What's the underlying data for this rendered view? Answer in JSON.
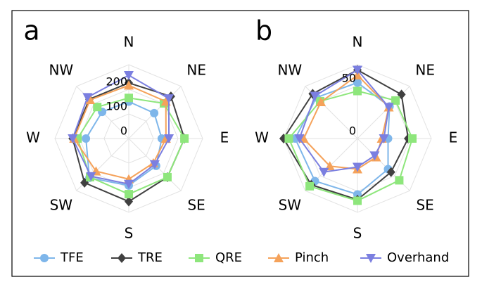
{
  "chart_data": [
    {
      "type": "radar",
      "label": "a",
      "categories": [
        "N",
        "NE",
        "E",
        "SE",
        "S",
        "SW",
        "W",
        "NW"
      ],
      "rlim": [
        0,
        300
      ],
      "rticks": [
        0,
        100,
        200
      ],
      "series": [
        {
          "name": "TFE",
          "color": "#7eb6ea",
          "marker": "circle",
          "values": [
            150,
            146,
            134,
            157,
            191,
            226,
            174,
            153
          ]
        },
        {
          "name": "TRE",
          "color": "#404040",
          "marker": "diamond",
          "values": [
            226,
            242,
            226,
            222,
            256,
            254,
            228,
            226
          ]
        },
        {
          "name": "QRE",
          "color": "#8ee67c",
          "marker": "square",
          "values": [
            165,
            202,
            226,
            222,
            226,
            222,
            208,
            181
          ]
        },
        {
          "name": "Pinch",
          "color": "#f5a25a",
          "marker": "triangle-up",
          "values": [
            216,
            213,
            151,
            141,
            165,
            188,
            222,
            222
          ]
        },
        {
          "name": "Overhand",
          "color": "#7b7fe0",
          "marker": "triangle-down",
          "values": [
            257,
            230,
            163,
            149,
            185,
            217,
            228,
            237
          ]
        }
      ]
    },
    {
      "type": "radar",
      "label": "b",
      "categories": [
        "N",
        "NE",
        "E",
        "SE",
        "S",
        "SW",
        "W",
        "NW"
      ],
      "rlim": [
        0,
        70
      ],
      "rticks": [
        0,
        50
      ],
      "series": [
        {
          "values": [
            53,
            43,
            29,
            41,
            53,
            57,
            59,
            55
          ]
        },
        {
          "values": [
            65,
            59,
            48,
            45,
            58,
            62,
            70,
            60
          ]
        },
        {
          "values": [
            45,
            51,
            52,
            56,
            59,
            64,
            65,
            50
          ]
        },
        {
          "values": [
            60,
            42,
            23,
            25,
            29,
            37,
            51,
            49
          ]
        },
        {
          "values": [
            65,
            42,
            25,
            23,
            27,
            45,
            55,
            57
          ]
        }
      ]
    }
  ]
}
